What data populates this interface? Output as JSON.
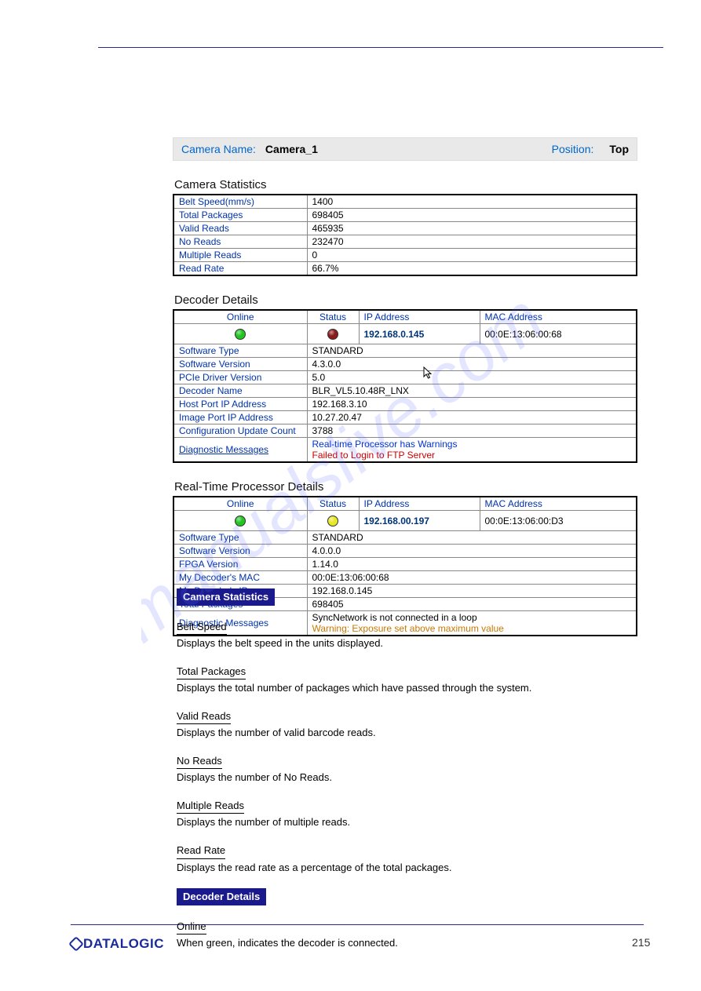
{
  "header": {
    "name_label": "Camera Name:",
    "name_value": "Camera_1",
    "position_label": "Position:",
    "position_value": "Top"
  },
  "camera_stats": {
    "title": "Camera Statistics",
    "rows": [
      {
        "k": "Belt Speed(mm/s)",
        "v": "1400"
      },
      {
        "k": "Total Packages",
        "v": "698405"
      },
      {
        "k": "Valid Reads",
        "v": "465935"
      },
      {
        "k": "No Reads",
        "v": "232470"
      },
      {
        "k": "Multiple Reads",
        "v": "0"
      },
      {
        "k": "Read Rate",
        "v": "66.7%"
      }
    ]
  },
  "decoder": {
    "title": "Decoder Details",
    "head": {
      "online": "Online",
      "status": "Status",
      "ip": "IP Address",
      "mac": "MAC Address"
    },
    "status": {
      "online_color": "#22c522",
      "status_color": "#8b1a1a",
      "ip": "192.168.0.145",
      "mac": "00:0E:13:06:00:68"
    },
    "rows": [
      {
        "k": "Software Type",
        "v": "STANDARD"
      },
      {
        "k": "Software Version",
        "v": "4.3.0.0"
      },
      {
        "k": "PCIe Driver Version",
        "v": "5.0"
      },
      {
        "k": "Decoder Name",
        "v": "BLR_VL5.10.48R_LNX"
      },
      {
        "k": "Host Port IP Address",
        "v": "192.168.3.10"
      },
      {
        "k": "Image Port IP Address",
        "v": "10.27.20.47"
      },
      {
        "k": "Configuration Update Count",
        "v": "3788"
      }
    ],
    "diag_label": "Diagnostic Messages",
    "diag_lines": [
      {
        "text": "Real-time Processor has Warnings",
        "cls": "diag-blue"
      },
      {
        "text": "Failed to Login to FTP Server",
        "cls": "diag-red"
      }
    ]
  },
  "rtp": {
    "title": "Real-Time Processor Details",
    "head": {
      "online": "Online",
      "status": "Status",
      "ip": "IP Address",
      "mac": "MAC Address"
    },
    "status": {
      "online_color": "#22c522",
      "status_color": "#e8e82a",
      "ip": "192.168.00.197",
      "mac": "00:0E:13:06:00:D3"
    },
    "rows": [
      {
        "k": "Software Type",
        "v": "STANDARD"
      },
      {
        "k": "Software Version",
        "v": "4.0.0.0"
      },
      {
        "k": "FPGA Version",
        "v": "1.14.0"
      },
      {
        "k": "My Decoder's MAC",
        "v": "00:0E:13:06:00:68"
      },
      {
        "k": "My Decoder's IP",
        "v": "192.168.0.145"
      },
      {
        "k": "Total Packages",
        "v": "698405"
      }
    ],
    "diag_label": "Diagnostic Messages",
    "diag_lines": [
      {
        "text": "SyncNetwork is not connected in a loop",
        "cls": ""
      },
      {
        "text": "Warning: Exposure set above maximum value",
        "cls": "diag-warn"
      }
    ]
  },
  "defs": [
    {
      "style": "boxed",
      "term": "Camera Statistics",
      "desc": ""
    },
    {
      "style": "underlined",
      "term": "Belt Speed",
      "desc": "Displays the belt speed in the units displayed."
    },
    {
      "style": "underlined",
      "term": "Total Packages",
      "desc": "Displays the total number of packages which have passed through the system."
    },
    {
      "style": "underlined",
      "term": "Valid Reads",
      "desc": "Displays the number of valid barcode reads."
    },
    {
      "style": "underlined",
      "term": "No Reads",
      "desc": "Displays the number of No Reads."
    },
    {
      "style": "underlined",
      "term": "Multiple Reads",
      "desc": "Displays the number of multiple reads."
    },
    {
      "style": "underlined",
      "term": "Read Rate",
      "desc": "Displays the read rate as a percentage of the total packages."
    },
    {
      "style": "boxed",
      "term": "Decoder Details",
      "desc": ""
    },
    {
      "style": "underlined",
      "term": "Online",
      "desc": "When green, indicates the decoder is connected."
    }
  ],
  "footer": {
    "brand": "DATALOGIC",
    "page": "215"
  },
  "colors": {
    "link_blue": "#0033aa",
    "header_bg": "#e9e9e9",
    "box_navy": "#1a1a8c",
    "rule": "#2a2a8a"
  }
}
